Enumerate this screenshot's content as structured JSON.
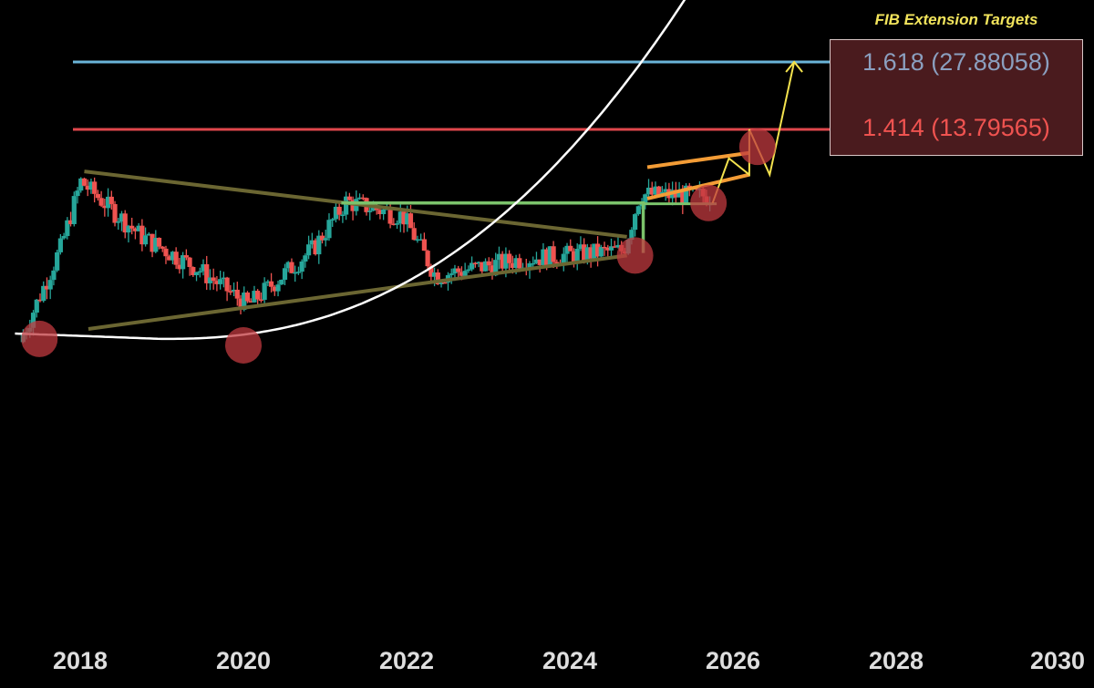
{
  "header": {
    "fib_title": "FIB Extension Targets"
  },
  "fib_targets": [
    {
      "label": "1.618 (27.88058)",
      "ratio": 1.618,
      "price": 27.88058,
      "color": "#6ab4d8"
    },
    {
      "label": "1.414 (13.79565)",
      "ratio": 1.414,
      "price": 13.79565,
      "color": "#e0474c"
    }
  ],
  "colors": {
    "background": "#000000",
    "up_candle": "#26a69a",
    "down_candle": "#ef5350",
    "triangle": "#6b6632",
    "breakout_level": "#7bc36b",
    "channel": "#f39c36",
    "projection": "#f3e24e",
    "curve": "#ffffff",
    "touch_marker": "#c0393f"
  },
  "chart_data": {
    "type": "candlestick",
    "title": "",
    "xlabel": "",
    "ylabel": "",
    "x_ticks": [
      "2018",
      "2020",
      "2022",
      "2024",
      "2026",
      "2028",
      "2030"
    ],
    "xlim": [
      2017.25,
      2030.1
    ],
    "grid": false,
    "price_axis_visible": false,
    "levels": [
      {
        "name": "1.618",
        "value": 27.88058
      },
      {
        "name": "1.414",
        "value": 13.79565
      }
    ],
    "series_trend": [
      {
        "t": 2017.3,
        "y": 1.5
      },
      {
        "t": 2017.8,
        "y": 4.0
      },
      {
        "t": 2018.05,
        "y": 8.0
      },
      {
        "t": 2018.8,
        "y": 4.5
      },
      {
        "t": 2019.5,
        "y": 3.2
      },
      {
        "t": 2020.1,
        "y": 2.2
      },
      {
        "t": 2020.9,
        "y": 4.0
      },
      {
        "t": 2021.3,
        "y": 6.5
      },
      {
        "t": 2022.0,
        "y": 5.6
      },
      {
        "t": 2022.4,
        "y": 3.0
      },
      {
        "t": 2023.5,
        "y": 3.6
      },
      {
        "t": 2024.7,
        "y": 3.9
      },
      {
        "t": 2024.9,
        "y": 7.0
      },
      {
        "t": 2025.7,
        "y": 6.9
      }
    ],
    "annotations": [
      "converging triangle",
      "horizontal breakout level",
      "rising parabolic curve",
      "ascending channel",
      "projected zigzag to 1.414 and 1.618 targets",
      "curve touch points at 2017.5, 2020.0, 2024.8, 2025.7, 2026.3"
    ]
  }
}
